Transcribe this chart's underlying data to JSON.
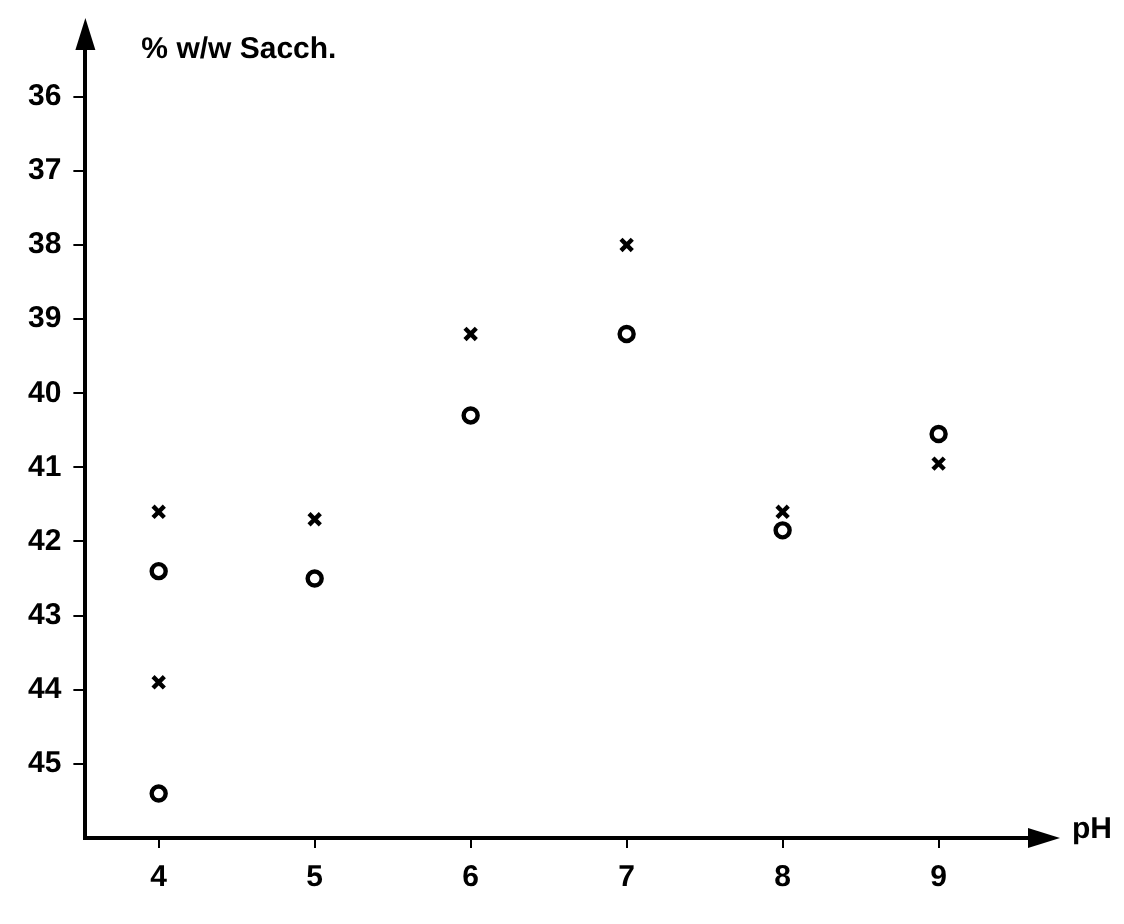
{
  "chart_data": {
    "type": "scatter",
    "ylabel": "% w/w Sacch.",
    "xlabel": "pH",
    "xlim": [
      3.53,
      9.65
    ],
    "xticks": [
      4,
      5,
      6,
      7,
      8,
      9
    ],
    "ylim": [
      46,
      35.1
    ],
    "yticks": [
      36,
      37,
      38,
      39,
      40,
      41,
      42,
      43,
      44,
      45
    ],
    "grid": false,
    "legend": false,
    "series": [
      {
        "color": "#000000",
        "marker": "cross",
        "x": [
          4,
          4,
          5,
          6,
          7,
          8,
          9
        ],
        "values": [
          41.6,
          43.9,
          41.7,
          39.2,
          38.0,
          41.6,
          40.95
        ]
      },
      {
        "color": "#000000",
        "marker": "circle",
        "x": [
          4,
          4,
          5,
          6,
          7,
          8,
          9
        ],
        "values": [
          42.4,
          45.4,
          42.5,
          40.3,
          39.2,
          41.85,
          40.55
        ]
      }
    ]
  }
}
